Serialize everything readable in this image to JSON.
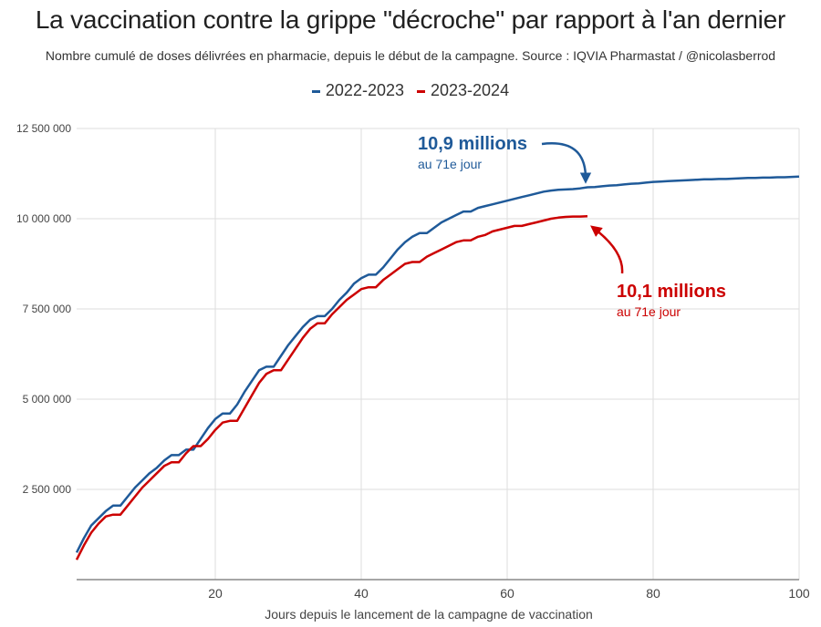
{
  "colors": {
    "series_2022": "#1f5a99",
    "series_2023": "#cc0000",
    "grid": "#dddddd",
    "axis": "#888888"
  },
  "chart_data": {
    "type": "line",
    "title": "La vaccination contre la grippe \"décroche\" par rapport à l'an dernier",
    "subtitle": "Nombre cumulé de doses délivrées en pharmacie, depuis le début de la campagne. Source : IQVIA Pharmastat / @nicolasberrod",
    "xlabel": "Jours depuis le lancement de la campagne de vaccination",
    "ylabel": "",
    "xlim": [
      1,
      100
    ],
    "ylim": [
      0,
      12500000
    ],
    "x_ticks": [
      20,
      40,
      60,
      80,
      100
    ],
    "y_ticks": [
      2500000,
      5000000,
      7500000,
      10000000,
      12500000
    ],
    "y_tick_labels": [
      "2 500 000",
      "5 000 000",
      "7 500 000",
      "10 000 000",
      "12 500 000"
    ],
    "grid": true,
    "legend": {
      "position": "top",
      "entries": [
        "2022-2023",
        "2023-2024"
      ]
    },
    "series": [
      {
        "name": "2022-2023",
        "x": [
          1,
          2,
          3,
          4,
          5,
          6,
          7,
          8,
          9,
          10,
          11,
          12,
          13,
          14,
          15,
          16,
          17,
          18,
          19,
          20,
          21,
          22,
          23,
          24,
          25,
          26,
          27,
          28,
          29,
          30,
          31,
          32,
          33,
          34,
          35,
          36,
          37,
          38,
          39,
          40,
          41,
          42,
          43,
          44,
          45,
          46,
          47,
          48,
          49,
          50,
          51,
          52,
          53,
          54,
          55,
          56,
          57,
          58,
          59,
          60,
          61,
          62,
          63,
          64,
          65,
          66,
          67,
          68,
          69,
          70,
          71,
          72,
          73,
          74,
          75,
          76,
          77,
          78,
          79,
          80,
          81,
          82,
          83,
          84,
          85,
          86,
          87,
          88,
          89,
          90,
          91,
          92,
          93,
          94,
          95,
          96,
          97,
          98,
          99,
          100
        ],
        "values": [
          750000,
          1150000,
          1500000,
          1700000,
          1900000,
          2050000,
          2050000,
          2300000,
          2550000,
          2750000,
          2950000,
          3100000,
          3300000,
          3450000,
          3450000,
          3600000,
          3600000,
          3900000,
          4200000,
          4450000,
          4600000,
          4600000,
          4850000,
          5200000,
          5500000,
          5800000,
          5900000,
          5900000,
          6200000,
          6500000,
          6750000,
          7000000,
          7200000,
          7300000,
          7300000,
          7500000,
          7750000,
          7950000,
          8200000,
          8350000,
          8450000,
          8450000,
          8650000,
          8900000,
          9150000,
          9350000,
          9500000,
          9600000,
          9600000,
          9750000,
          9900000,
          10000000,
          10100000,
          10200000,
          10200000,
          10300000,
          10350000,
          10400000,
          10450000,
          10500000,
          10550000,
          10600000,
          10650000,
          10700000,
          10750000,
          10780000,
          10800000,
          10810000,
          10820000,
          10840000,
          10870000,
          10880000,
          10900000,
          10920000,
          10930000,
          10950000,
          10970000,
          10980000,
          11000000,
          11020000,
          11030000,
          11040000,
          11050000,
          11060000,
          11070000,
          11080000,
          11090000,
          11090000,
          11100000,
          11100000,
          11110000,
          11120000,
          11130000,
          11130000,
          11140000,
          11140000,
          11150000,
          11150000,
          11160000,
          11170000
        ]
      },
      {
        "name": "2023-2024",
        "x": [
          1,
          2,
          3,
          4,
          5,
          6,
          7,
          8,
          9,
          10,
          11,
          12,
          13,
          14,
          15,
          16,
          17,
          18,
          19,
          20,
          21,
          22,
          23,
          24,
          25,
          26,
          27,
          28,
          29,
          30,
          31,
          32,
          33,
          34,
          35,
          36,
          37,
          38,
          39,
          40,
          41,
          42,
          43,
          44,
          45,
          46,
          47,
          48,
          49,
          50,
          51,
          52,
          53,
          54,
          55,
          56,
          57,
          58,
          59,
          60,
          61,
          62,
          63,
          64,
          65,
          66,
          67,
          68,
          69,
          70,
          71
        ],
        "values": [
          550000,
          950000,
          1300000,
          1550000,
          1750000,
          1800000,
          1800000,
          2050000,
          2300000,
          2550000,
          2750000,
          2950000,
          3150000,
          3250000,
          3250000,
          3500000,
          3700000,
          3700000,
          3900000,
          4150000,
          4350000,
          4400000,
          4400000,
          4750000,
          5100000,
          5450000,
          5700000,
          5800000,
          5800000,
          6100000,
          6400000,
          6700000,
          6950000,
          7100000,
          7100000,
          7350000,
          7550000,
          7750000,
          7900000,
          8050000,
          8100000,
          8100000,
          8300000,
          8450000,
          8600000,
          8750000,
          8800000,
          8800000,
          8950000,
          9050000,
          9150000,
          9250000,
          9350000,
          9400000,
          9400000,
          9500000,
          9550000,
          9650000,
          9700000,
          9750000,
          9800000,
          9800000,
          9850000,
          9900000,
          9950000,
          10000000,
          10030000,
          10050000,
          10060000,
          10060000,
          10070000
        ]
      }
    ],
    "annotations": [
      {
        "series": "2022-2023",
        "day": 71,
        "label": "10,9 millions",
        "sublabel": "au 71e jour"
      },
      {
        "series": "2023-2024",
        "day": 71,
        "label": "10,1 millions",
        "sublabel": "au 71e jour"
      }
    ]
  }
}
